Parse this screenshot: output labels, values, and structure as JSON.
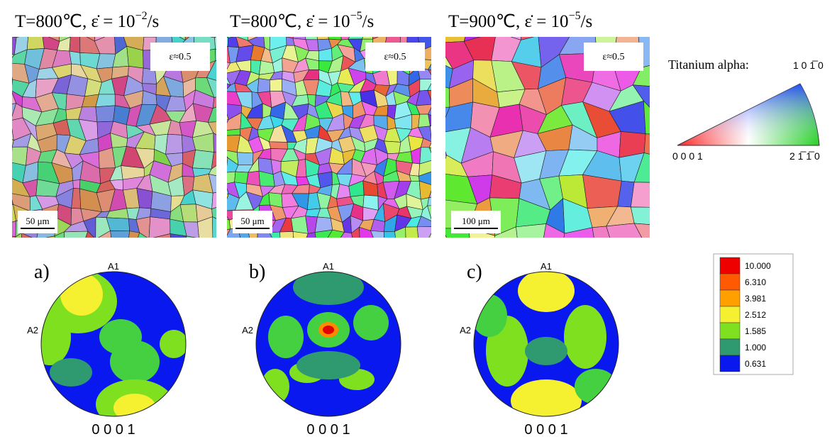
{
  "panels": [
    {
      "temperature": "T=800℃,",
      "rate": " ε̇ = 10",
      "exponent": "−2",
      "unit": "/s",
      "strain": "ε≈0.5",
      "scale_bar": "50 μm",
      "label": "a)",
      "pole_top": "A1",
      "pole_left": "A2",
      "pole_figure": "0 0 0 1"
    },
    {
      "temperature": "T=800℃,",
      "rate": " ε̇ = 10",
      "exponent": "−5",
      "unit": "/s",
      "strain": "ε≈0.5",
      "scale_bar": "50 μm",
      "label": "b)",
      "pole_top": "A1",
      "pole_left": "A2",
      "pole_figure": "0 0 0 1"
    },
    {
      "temperature": "T=900℃,",
      "rate": " ε̇ = 10",
      "exponent": "−5",
      "unit": "/s",
      "strain": "ε≈0.5",
      "scale_bar": "100 μm",
      "label": "c)",
      "pole_top": "A1",
      "pole_left": "A2",
      "pole_figure": "0 0 0 1"
    }
  ],
  "ipf": {
    "title": "Titanium alpha:",
    "corner_left": "0 0 0 1",
    "corner_right": "2 1̅ 1̅ 0",
    "corner_top": "1 0 1̅ 0"
  },
  "legend": {
    "levels": [
      "10.000",
      "6.310",
      "3.981",
      "2.512",
      "1.585",
      "1.000",
      "0.631"
    ]
  }
}
